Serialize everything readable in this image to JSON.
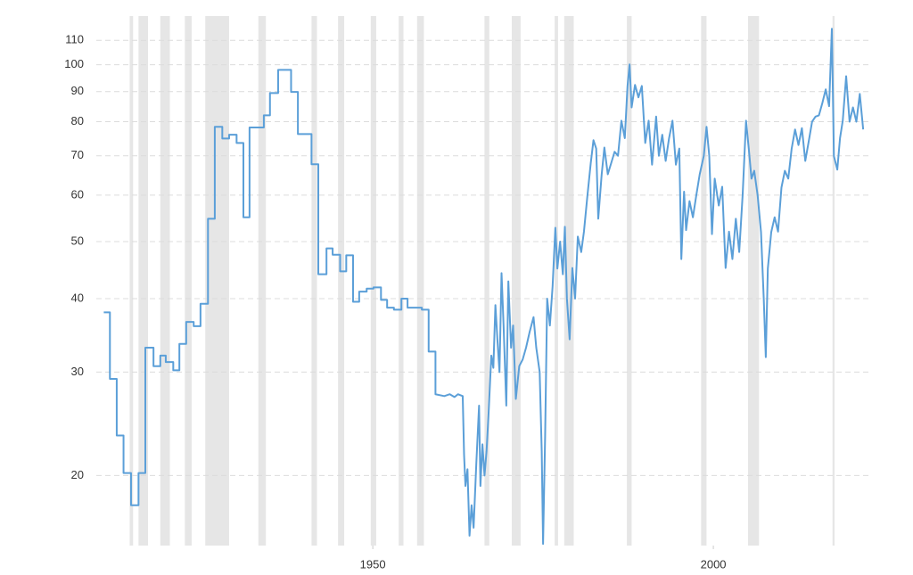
{
  "chart_data": {
    "type": "line",
    "log_scale": true,
    "grid": true,
    "color": "#5b9fd8",
    "xlim": [
      1909.4,
      2022.9
    ],
    "ylim": [
      15.2,
      121
    ],
    "yticks": [
      20,
      30,
      40,
      50,
      60,
      70,
      80,
      90,
      100,
      110
    ],
    "xticks": [
      1950,
      2000
    ],
    "recession_color": "#e6e6e6",
    "recessions": [
      [
        1914.3,
        1914.8
      ],
      [
        1915.6,
        1917.0
      ],
      [
        1918.8,
        1920.2
      ],
      [
        1922.4,
        1923.4
      ],
      [
        1925.4,
        1928.9
      ],
      [
        1933.2,
        1934.3
      ],
      [
        1941.0,
        1941.8
      ],
      [
        1944.9,
        1945.8
      ],
      [
        1949.7,
        1950.5
      ],
      [
        1953.8,
        1954.5
      ],
      [
        1956.5,
        1957.5
      ],
      [
        1966.4,
        1967.1
      ],
      [
        1970.4,
        1971.7
      ],
      [
        1976.7,
        1977.2
      ],
      [
        1978.1,
        1979.5
      ],
      [
        1987.3,
        1988.0
      ],
      [
        1998.2,
        1999.0
      ],
      [
        2005.1,
        2006.7
      ],
      [
        2017.5,
        2017.8
      ]
    ],
    "x": [
      1910.5,
      1911.4,
      1911.4,
      1912.4,
      1912.4,
      1913.4,
      1913.4,
      1914.5,
      1914.5,
      1915.6,
      1915.6,
      1916.6,
      1916.6,
      1917.8,
      1917.8,
      1918.8,
      1918.8,
      1919.6,
      1919.6,
      1920.7,
      1920.7,
      1921.6,
      1921.6,
      1922.6,
      1922.6,
      1923.7,
      1923.7,
      1924.7,
      1924.7,
      1925.8,
      1925.8,
      1926.8,
      1926.8,
      1927.9,
      1927.9,
      1928.9,
      1928.9,
      1930.0,
      1930.0,
      1931.0,
      1931.0,
      1931.9,
      1931.9,
      1934.0,
      1934.0,
      1934.9,
      1934.9,
      1936.1,
      1936.1,
      1938.0,
      1938.0,
      1939.0,
      1939.0,
      1941.0,
      1941.0,
      1942.0,
      1942.0,
      1943.2,
      1943.2,
      1944.1,
      1944.1,
      1945.2,
      1945.2,
      1946.1,
      1946.1,
      1947.1,
      1947.1,
      1948.0,
      1948.0,
      1949.1,
      1949.1,
      1950.1,
      1950.1,
      1951.2,
      1951.2,
      1952.1,
      1952.1,
      1953.1,
      1953.1,
      1954.2,
      1954.2,
      1955.1,
      1955.1,
      1957.2,
      1957.2,
      1958.2,
      1958.2,
      1959.2,
      1959.2,
      1960.5,
      1961.3,
      1962.0,
      1962.5,
      1963.2,
      1963.4,
      1963.6,
      1963.9,
      1964.2,
      1964.5,
      1964.8,
      1965.2,
      1965.6,
      1965.8,
      1966.1,
      1966.4,
      1966.7,
      1967.0,
      1967.4,
      1967.7,
      1968.0,
      1968.3,
      1968.6,
      1968.9,
      1969.2,
      1969.6,
      1969.9,
      1970.3,
      1970.6,
      1971.0,
      1971.5,
      1972.0,
      1972.5,
      1973.0,
      1973.6,
      1974.0,
      1974.5,
      1974.8,
      1975.0,
      1975.3,
      1975.6,
      1976.0,
      1976.4,
      1976.8,
      1977.1,
      1977.5,
      1977.9,
      1978.2,
      1978.5,
      1978.9,
      1979.3,
      1979.7,
      1980.1,
      1980.6,
      1981.0,
      1981.5,
      1982.0,
      1982.4,
      1982.8,
      1983.1,
      1983.6,
      1984.0,
      1984.5,
      1985.0,
      1985.5,
      1986.0,
      1986.5,
      1987.0,
      1987.4,
      1987.7,
      1988.0,
      1988.5,
      1989.0,
      1989.5,
      1990.0,
      1990.5,
      1991.0,
      1991.6,
      1992.0,
      1992.5,
      1993.0,
      1993.5,
      1994.0,
      1994.5,
      1995.0,
      1995.3,
      1995.7,
      1996.0,
      1996.5,
      1997.0,
      1997.5,
      1998.0,
      1998.6,
      1999.0,
      1999.4,
      1999.8,
      2000.2,
      2000.8,
      2001.3,
      2001.8,
      2002.3,
      2002.8,
      2003.3,
      2003.8,
      2004.3,
      2004.8,
      2005.2,
      2005.6,
      2006.0,
      2006.5,
      2007.0,
      2007.4,
      2007.7,
      2008.0,
      2008.5,
      2009.0,
      2009.5,
      2010.0,
      2010.5,
      2011.0,
      2011.5,
      2012.0,
      2012.5,
      2013.0,
      2013.5,
      2014.0,
      2014.5,
      2015.0,
      2015.5,
      2016.0,
      2016.5,
      2017.0,
      2017.4,
      2017.7,
      2018.2,
      2018.6,
      2019.0,
      2019.5,
      2020.0,
      2020.5,
      2021.0,
      2021.5,
      2022.0
    ],
    "values": [
      37.9,
      37.9,
      29.2,
      29.2,
      23.4,
      23.4,
      20.2,
      20.2,
      17.8,
      17.8,
      20.2,
      20.2,
      33.0,
      33.0,
      30.7,
      30.7,
      32.0,
      32.0,
      31.2,
      31.2,
      30.2,
      30.2,
      33.5,
      33.5,
      36.5,
      36.5,
      35.9,
      35.9,
      39.2,
      39.2,
      54.7,
      54.7,
      78.4,
      78.4,
      74.9,
      74.9,
      76.0,
      76.0,
      73.6,
      73.6,
      55.0,
      55.0,
      78.2,
      78.2,
      82.0,
      82.0,
      89.5,
      89.5,
      98.0,
      98.0,
      89.9,
      89.9,
      76.2,
      76.2,
      67.7,
      67.7,
      44.0,
      44.0,
      48.7,
      48.7,
      47.5,
      47.5,
      44.5,
      44.5,
      47.4,
      47.4,
      39.5,
      39.5,
      41.1,
      41.1,
      41.6,
      41.6,
      41.8,
      41.8,
      39.8,
      39.8,
      38.6,
      38.6,
      38.3,
      38.3,
      40.0,
      40.0,
      38.6,
      38.6,
      38.3,
      38.3,
      32.5,
      32.5,
      27.5,
      27.3,
      27.5,
      27.2,
      27.5,
      27.3,
      21.7,
      19.2,
      20.5,
      15.8,
      17.8,
      16.3,
      21.0,
      26.3,
      19.2,
      22.6,
      20.0,
      22.0,
      25.5,
      32.0,
      30.5,
      39.0,
      34.0,
      30.0,
      44.2,
      36.0,
      26.3,
      42.8,
      33.0,
      36.0,
      27.0,
      30.7,
      31.5,
      33.0,
      35.0,
      37.2,
      33.0,
      30.0,
      22.0,
      15.3,
      23.3,
      40.0,
      36.0,
      42.0,
      52.8,
      45.0,
      50.0,
      44.0,
      53.0,
      40.0,
      34.1,
      45.1,
      40.0,
      51.0,
      48.0,
      52.0,
      59.7,
      68.0,
      74.4,
      72.0,
      54.7,
      65.0,
      72.3,
      65.1,
      68.0,
      71.1,
      70.0,
      80.3,
      75.0,
      92.0,
      100.1,
      84.6,
      92.4,
      88.0,
      92.0,
      73.6,
      80.3,
      67.6,
      81.6,
      70.0,
      76.0,
      68.6,
      75.0,
      80.3,
      67.6,
      72.0,
      46.7,
      60.8,
      52.3,
      58.6,
      55.0,
      60.0,
      65.1,
      70.0,
      78.4,
      70.0,
      51.5,
      64.0,
      57.6,
      62.0,
      45.1,
      52.0,
      46.7,
      54.7,
      48.0,
      60.0,
      80.3,
      72.0,
      64.0,
      66.0,
      60.0,
      51.9,
      40.0,
      31.8,
      45.0,
      51.9,
      55.0,
      52.0,
      61.8,
      66.0,
      64.0,
      72.0,
      77.6,
      73.0,
      78.0,
      68.6,
      74.0,
      80.0,
      81.6,
      82.0,
      86.0,
      90.8,
      85.0,
      115.1,
      69.9,
      66.3,
      75.0,
      80.3,
      95.6,
      80.0,
      84.6,
      80.0,
      89.2,
      77.6
    ]
  }
}
